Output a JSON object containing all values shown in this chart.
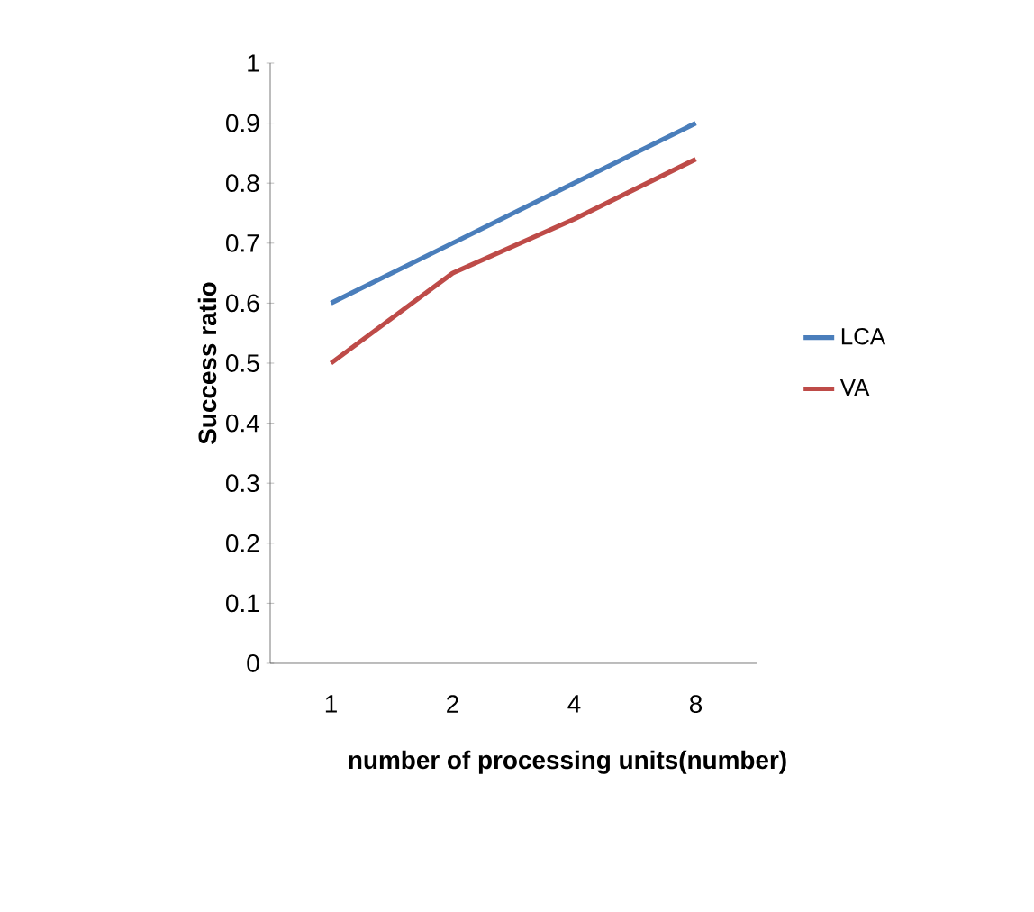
{
  "chart_data": {
    "type": "line",
    "xlabel": "number of processing units(number)",
    "ylabel": "Success ratio",
    "categories": [
      "1",
      "2",
      "4",
      "8"
    ],
    "series": [
      {
        "name": "LCA",
        "color": "#4a7ebb",
        "values": [
          0.6,
          0.7,
          0.8,
          0.9
        ]
      },
      {
        "name": "VA",
        "color": "#be4b48",
        "values": [
          0.5,
          0.65,
          0.74,
          0.84
        ]
      }
    ],
    "ylim": [
      0,
      1
    ],
    "yticks": [
      0,
      0.1,
      0.2,
      0.3,
      0.4,
      0.5,
      0.6,
      0.7,
      0.8,
      0.9,
      1
    ],
    "grid": false,
    "legend": "right",
    "marker": "none",
    "line_style": "solid"
  }
}
